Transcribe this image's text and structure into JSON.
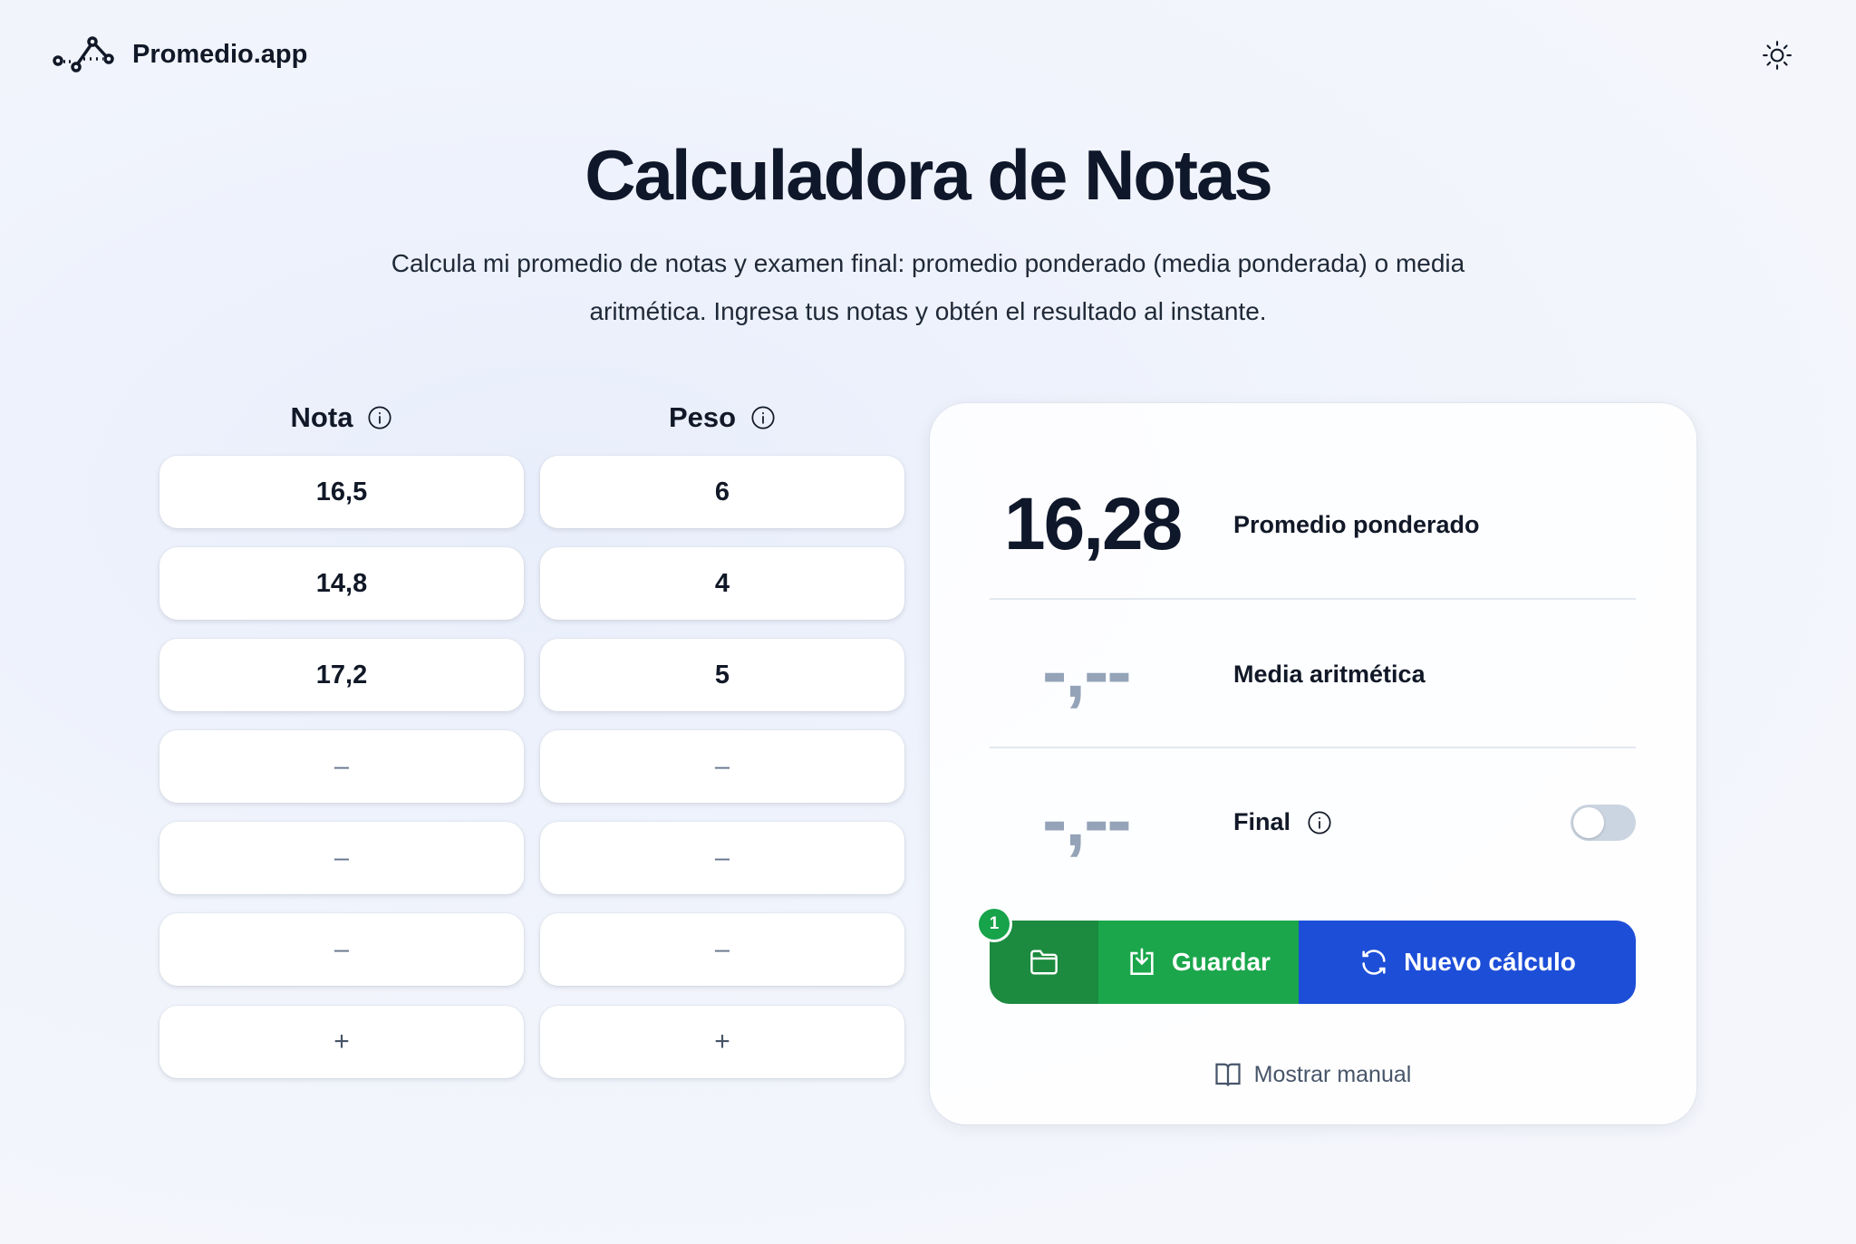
{
  "header": {
    "app_name": "Promedio.app",
    "logo_icon": "chart-line-dots-icon",
    "theme_icon": "sun-icon"
  },
  "hero": {
    "title": "Calculadora de Notas",
    "subtitle": "Calcula mi promedio de notas y examen final: promedio ponderado (media ponderada) o media aritmética. Ingresa tus notas y obtén el resultado al instante."
  },
  "table": {
    "nota_header": "Nota",
    "peso_header": "Peso",
    "rows": [
      {
        "nota": "16,5",
        "peso": "6"
      },
      {
        "nota": "14,8",
        "peso": "4"
      },
      {
        "nota": "17,2",
        "peso": "5"
      },
      {
        "nota": "",
        "peso": ""
      },
      {
        "nota": "",
        "peso": ""
      },
      {
        "nota": "",
        "peso": ""
      }
    ],
    "placeholder": "–",
    "add_label": "+"
  },
  "results": {
    "weighted": {
      "value": "16,28",
      "label": "Promedio ponderado"
    },
    "arithmetic": {
      "value": "-,--",
      "label": "Media aritmética"
    },
    "final": {
      "value": "-,--",
      "label": "Final",
      "toggle_on": false
    }
  },
  "actions": {
    "saved_count": "1",
    "save_label": "Guardar",
    "new_label": "Nuevo cálculo",
    "manual_label": "Mostrar manual"
  },
  "colors": {
    "dark_green": "#1c8a3f",
    "green": "#1ba64b",
    "blue": "#1d4ed8",
    "text": "#0f172a",
    "muted": "#94a3b8"
  }
}
